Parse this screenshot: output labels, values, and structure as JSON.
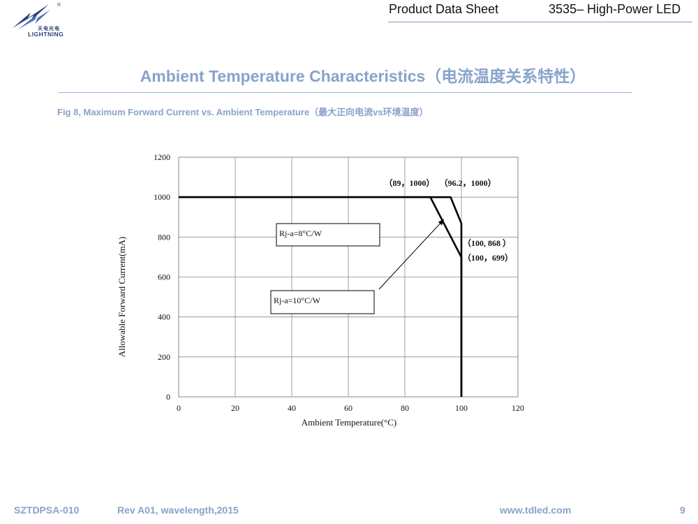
{
  "header": {
    "brand_cn": "天电光电",
    "brand_en": "LIGHTNING",
    "registered": "R",
    "doc_type": "Product Data Sheet",
    "product": "3535– High-Power LED"
  },
  "title": "Ambient Temperature Characteristics（电流温度关系特性）",
  "figure_caption": "Fig 8, Maximum Forward Current vs. Ambient Temperature（最大正向电流vs环境温度）",
  "chart_data": {
    "type": "line",
    "xlabel": "Ambient Temperature(°C)",
    "ylabel": "Allowable Forward Current(mA)",
    "xlim": [
      0,
      120
    ],
    "ylim": [
      0,
      1200
    ],
    "xticks": [
      0,
      20,
      40,
      60,
      80,
      100,
      120
    ],
    "yticks": [
      0,
      200,
      400,
      600,
      800,
      1000,
      1200
    ],
    "grid": true,
    "series": [
      {
        "name": "Rj-a=8°C/W",
        "points": [
          [
            0,
            1000
          ],
          [
            96.2,
            1000
          ],
          [
            100,
            868
          ],
          [
            100,
            0
          ]
        ]
      },
      {
        "name": "Rj-a=10°C/W",
        "points": [
          [
            0,
            1000
          ],
          [
            89,
            1000
          ],
          [
            100,
            699
          ],
          [
            100,
            0
          ]
        ]
      }
    ],
    "annotations": [
      {
        "text": "（89，1000）",
        "x": 89,
        "y": 1000
      },
      {
        "text": "（96.2，1000）",
        "x": 96.2,
        "y": 1000
      },
      {
        "text": "（100, 868 ）",
        "x": 100,
        "y": 868
      },
      {
        "text": "（100，699）",
        "x": 100,
        "y": 699
      }
    ],
    "labels": [
      {
        "text": "Rj-a=8°C/W"
      },
      {
        "text": "Rj-a=10°C/W"
      }
    ]
  },
  "footer": {
    "doc_code": "SZTDPSA-010",
    "revision": "Rev A01, wavelength,2015",
    "website": "www.tdled.com",
    "page": "9"
  }
}
